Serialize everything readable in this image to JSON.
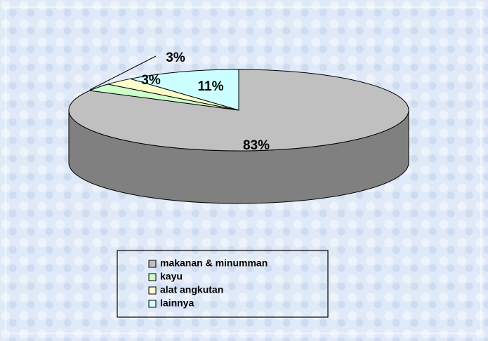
{
  "chart_data": {
    "type": "pie3d",
    "categories": [
      "makanan & minumman",
      "kayu",
      "alat angkutan",
      "lainnya"
    ],
    "values": [
      83,
      3,
      3,
      11
    ],
    "value_labels": [
      "83%",
      "3%",
      "3%",
      "11%"
    ],
    "colors": [
      "#c0c0c0",
      "#ccffcc",
      "#ffffcc",
      "#ccffff"
    ],
    "legend": "bottom"
  }
}
